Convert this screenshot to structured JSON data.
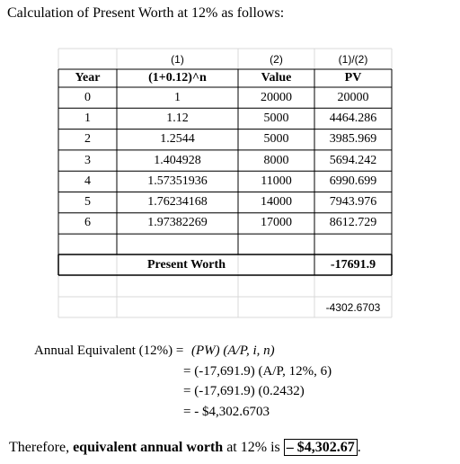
{
  "heading": "Calculation of Present Worth at 12% as follows:",
  "table": {
    "column_numbers": [
      "(1)",
      "(2)",
      "(1)/(2)"
    ],
    "header": [
      "Year",
      "(1+0.12)^n",
      "Value",
      "PV"
    ],
    "rows": [
      [
        "0",
        "1",
        "20000",
        "20000"
      ],
      [
        "1",
        "1.12",
        "5000",
        "4464.286"
      ],
      [
        "2",
        "1.2544",
        "5000",
        "3985.969"
      ],
      [
        "3",
        "1.404928",
        "8000",
        "5694.242"
      ],
      [
        "4",
        "1.57351936",
        "11000",
        "6990.699"
      ],
      [
        "5",
        "1.76234168",
        "14000",
        "7943.976"
      ],
      [
        "6",
        "1.97382269",
        "17000",
        "8612.729"
      ]
    ],
    "total_label": "Present Worth",
    "total_value": "-17691.9",
    "annual_value": "-4302.6703"
  },
  "equation": {
    "lhs": "Annual Equivalent (12%) = ",
    "formula": "(PW) (A/P, i, n)",
    "steps": [
      "= (-17,691.9) (A/P, 12%, 6)",
      "= (-17,691.9) (0.2432)",
      "= - $4,302.6703"
    ]
  },
  "conclusion": {
    "prefix": "Therefore, ",
    "emphasis": "equivalent annual worth",
    "middle": " at 12% is ",
    "answer": "– $4,302.67",
    "end": "."
  }
}
